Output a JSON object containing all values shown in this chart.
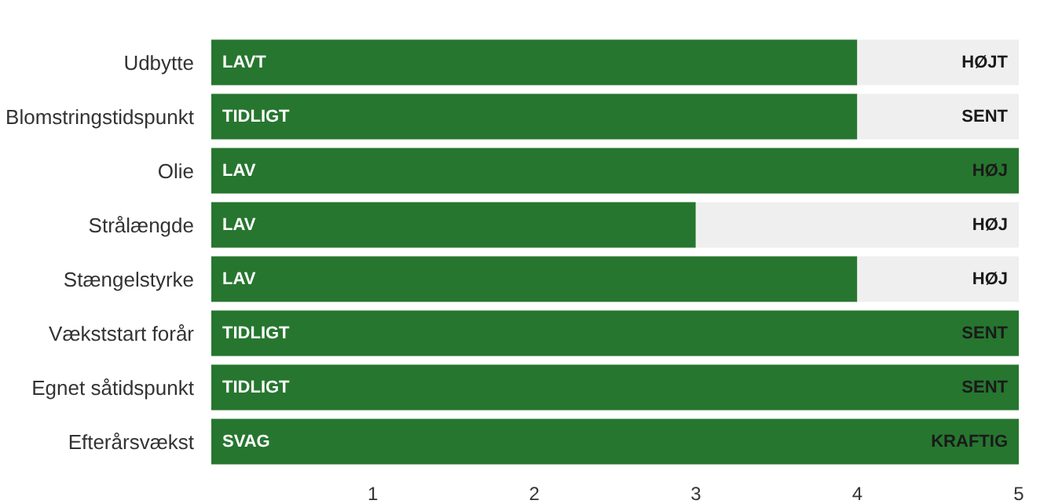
{
  "chart_data": {
    "type": "bar",
    "orientation": "horizontal",
    "stacked": true,
    "categories": [
      "Udbytte",
      "Blomstringstidspunkt",
      "Olie",
      "Strålængde",
      "Stængelstyrke",
      "Vækststart forår",
      "Egnet såtidspunkt",
      "Efterårsvækst"
    ],
    "series": [
      {
        "color": "#26762f",
        "values": [
          4,
          4,
          5,
          3,
          4,
          5,
          5,
          5
        ]
      },
      {
        "color": "#efefef",
        "values": [
          1,
          1,
          0,
          2,
          1,
          0,
          0,
          0
        ]
      }
    ],
    "xlim": [
      0,
      5
    ],
    "xticks": [
      1,
      2,
      3,
      4,
      5
    ],
    "grid": false,
    "annotations": [
      {
        "text": "LAVT",
        "y": "Udbytte"
      },
      {
        "text": "HØJT",
        "y": "Udbytte"
      },
      {
        "text": "TIDLIGT",
        "y": "Blomstringstidspunkt"
      },
      {
        "text": "SENT",
        "y": "Blomstringstidspunkt"
      },
      {
        "text": "LAV",
        "y": "Olie"
      },
      {
        "text": "HØJ",
        "y": "Olie"
      },
      {
        "text": "LAV",
        "y": "Strålængde"
      },
      {
        "text": "HØJ",
        "y": "Strålængde"
      },
      {
        "text": "LAV",
        "y": "Stængelstyrke"
      },
      {
        "text": "HØJ",
        "y": "Stængelstyrke"
      },
      {
        "text": "TIDLIGT",
        "y": "Vækststart forår"
      },
      {
        "text": "SENT",
        "y": "Vækststart forår"
      },
      {
        "text": "TIDLIGT",
        "y": "Egnet såtidspunkt"
      },
      {
        "text": "SENT",
        "y": "Egnet såtidspunkt"
      },
      {
        "text": "SVAG",
        "y": "Efterårsvækst"
      },
      {
        "text": "KRAFTIG",
        "y": "Efterårsvækst"
      }
    ]
  }
}
